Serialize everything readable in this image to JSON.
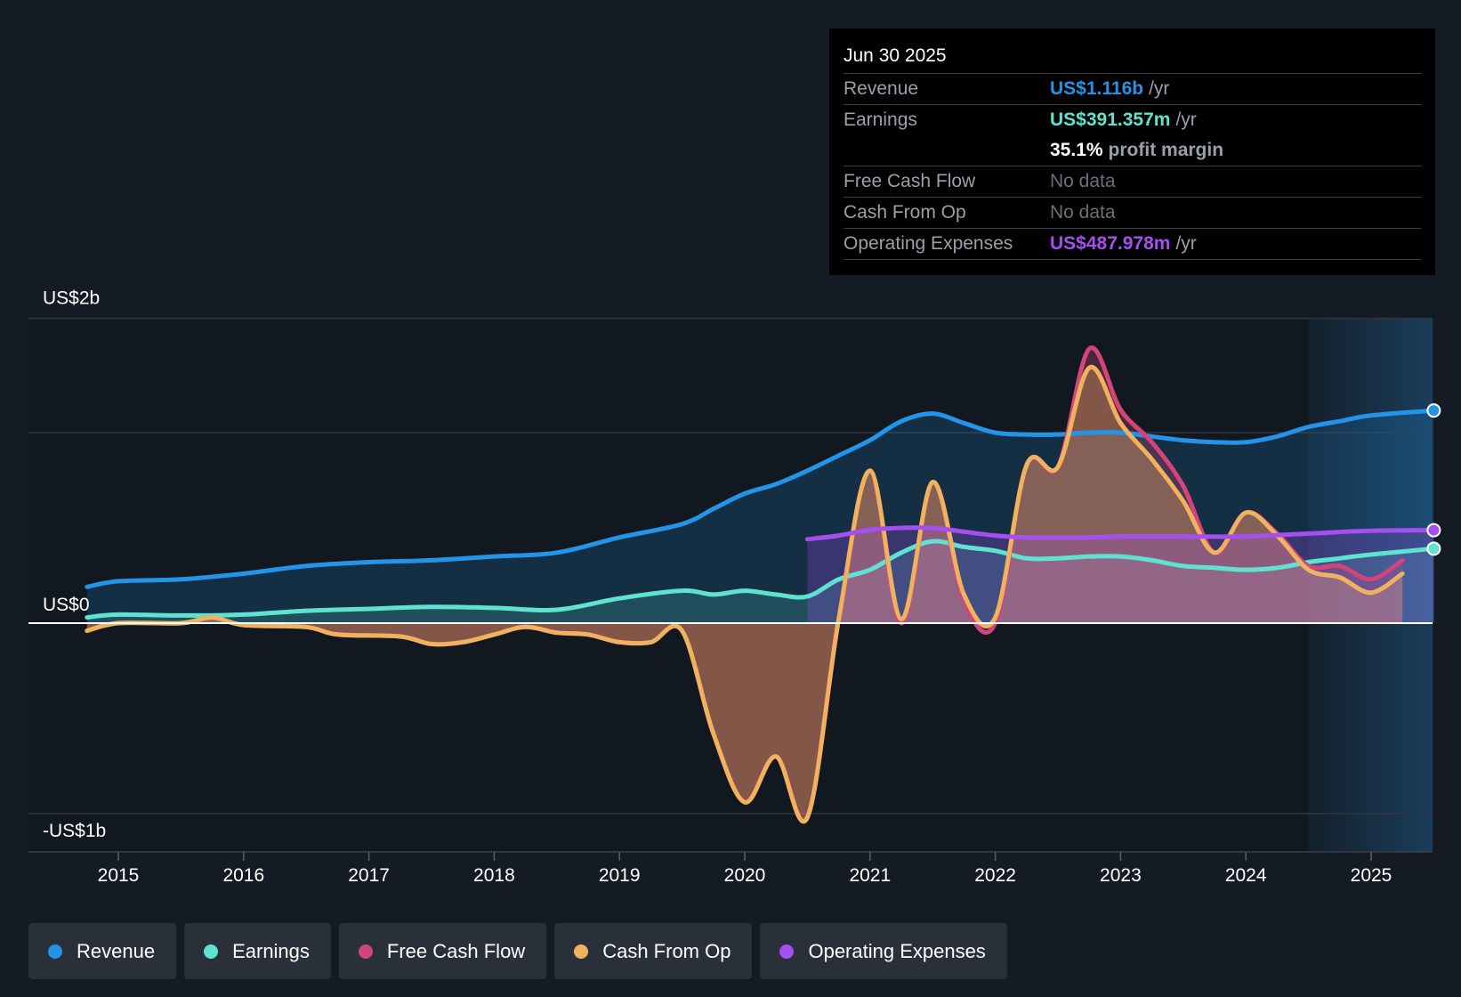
{
  "tooltip": {
    "date": "Jun 30 2025",
    "revenue_label": "Revenue",
    "revenue_value": "US$1.116b",
    "earnings_label": "Earnings",
    "earnings_value": "US$391.357m",
    "margin_value": "35.1%",
    "margin_label": "profit margin",
    "fcf_label": "Free Cash Flow",
    "fcf_value": "No data",
    "cfo_label": "Cash From Op",
    "cfo_value": "No data",
    "opex_label": "Operating Expenses",
    "opex_value": "US$487.978m",
    "unit": "/yr"
  },
  "legend": [
    {
      "label": "Revenue",
      "color": "#2394e8"
    },
    {
      "label": "Earnings",
      "color": "#5fe3d0"
    },
    {
      "label": "Free Cash Flow",
      "color": "#d1457a"
    },
    {
      "label": "Cash From Op",
      "color": "#f0b25e"
    },
    {
      "label": "Operating Expenses",
      "color": "#a64ff0"
    }
  ],
  "chart_data": {
    "type": "line",
    "title": "",
    "xlabel": "",
    "ylabel": "",
    "xlim": [
      2014.75,
      2025.5
    ],
    "ylim": [
      -1.2,
      1.6
    ],
    "y_tick_labels": [
      {
        "value": 1.6,
        "label": "US$2b"
      },
      {
        "value": 0,
        "label": "US$0"
      },
      {
        "value": -1.0,
        "label": "-US$1b"
      }
    ],
    "x_ticks": [
      2015,
      2016,
      2017,
      2018,
      2019,
      2020,
      2021,
      2022,
      2023,
      2024,
      2025
    ],
    "x_tick_labels": [
      "2015",
      "2016",
      "2017",
      "2018",
      "2019",
      "2020",
      "2021",
      "2022",
      "2023",
      "2024",
      "2025"
    ],
    "gridlines": [
      1.6,
      1.0,
      -1.0
    ],
    "forecast_start": 2024.5,
    "series": [
      {
        "name": "Revenue",
        "color": "#2394e8",
        "fill": true,
        "end_marker": true,
        "points": [
          [
            2014.5,
            0.19
          ],
          [
            2015,
            0.22
          ],
          [
            2015.5,
            0.23
          ],
          [
            2016,
            0.26
          ],
          [
            2016.5,
            0.3
          ],
          [
            2017,
            0.32
          ],
          [
            2017.5,
            0.33
          ],
          [
            2018,
            0.35
          ],
          [
            2018.5,
            0.37
          ],
          [
            2019,
            0.45
          ],
          [
            2019.5,
            0.52
          ],
          [
            2019.75,
            0.6
          ],
          [
            2020,
            0.68
          ],
          [
            2020.25,
            0.73
          ],
          [
            2020.5,
            0.8
          ],
          [
            2020.75,
            0.88
          ],
          [
            2021,
            0.96
          ],
          [
            2021.25,
            1.06
          ],
          [
            2021.5,
            1.1
          ],
          [
            2021.75,
            1.05
          ],
          [
            2022,
            1.0
          ],
          [
            2022.25,
            0.99
          ],
          [
            2022.5,
            0.99
          ],
          [
            2022.75,
            1.0
          ],
          [
            2023,
            1.0
          ],
          [
            2023.25,
            0.98
          ],
          [
            2023.5,
            0.96
          ],
          [
            2023.75,
            0.95
          ],
          [
            2024,
            0.95
          ],
          [
            2024.25,
            0.98
          ],
          [
            2024.5,
            1.03
          ],
          [
            2024.75,
            1.06
          ],
          [
            2025,
            1.09
          ],
          [
            2025.5,
            1.116
          ]
        ]
      },
      {
        "name": "Earnings",
        "color": "#5fe3d0",
        "fill": true,
        "end_marker": true,
        "points": [
          [
            2014.5,
            0.03
          ],
          [
            2015,
            0.045
          ],
          [
            2015.5,
            0.04
          ],
          [
            2016,
            0.045
          ],
          [
            2016.5,
            0.065
          ],
          [
            2017,
            0.075
          ],
          [
            2017.5,
            0.085
          ],
          [
            2018,
            0.08
          ],
          [
            2018.5,
            0.07
          ],
          [
            2019,
            0.13
          ],
          [
            2019.5,
            0.17
          ],
          [
            2019.75,
            0.15
          ],
          [
            2020,
            0.17
          ],
          [
            2020.25,
            0.15
          ],
          [
            2020.5,
            0.14
          ],
          [
            2020.75,
            0.23
          ],
          [
            2021,
            0.28
          ],
          [
            2021.25,
            0.37
          ],
          [
            2021.5,
            0.43
          ],
          [
            2021.75,
            0.4
          ],
          [
            2022,
            0.38
          ],
          [
            2022.25,
            0.34
          ],
          [
            2022.5,
            0.34
          ],
          [
            2022.75,
            0.35
          ],
          [
            2023,
            0.35
          ],
          [
            2023.25,
            0.33
          ],
          [
            2023.5,
            0.3
          ],
          [
            2023.75,
            0.29
          ],
          [
            2024,
            0.28
          ],
          [
            2024.25,
            0.29
          ],
          [
            2024.5,
            0.32
          ],
          [
            2024.75,
            0.34
          ],
          [
            2025,
            0.36
          ],
          [
            2025.5,
            0.391
          ]
        ]
      },
      {
        "name": "Free Cash Flow",
        "color": "#d1457a",
        "fill": true,
        "end_marker": false,
        "points": [
          [
            2014.75,
            -0.04
          ],
          [
            2015,
            0.0
          ],
          [
            2015.5,
            0.0
          ],
          [
            2015.75,
            0.03
          ],
          [
            2016,
            -0.01
          ],
          [
            2016.5,
            -0.02
          ],
          [
            2016.75,
            -0.06
          ],
          [
            2017.25,
            -0.07
          ],
          [
            2017.5,
            -0.11
          ],
          [
            2017.75,
            -0.1
          ],
          [
            2018,
            -0.06
          ],
          [
            2018.25,
            -0.02
          ],
          [
            2018.5,
            -0.05
          ],
          [
            2018.75,
            -0.06
          ],
          [
            2019,
            -0.1
          ],
          [
            2019.25,
            -0.1
          ],
          [
            2019.5,
            -0.04
          ],
          [
            2019.75,
            -0.58
          ],
          [
            2020,
            -0.94
          ],
          [
            2020.25,
            -0.7
          ],
          [
            2020.5,
            -1.02
          ],
          [
            2020.75,
            0.02
          ],
          [
            2021,
            0.8
          ],
          [
            2021.25,
            0.0
          ],
          [
            2021.5,
            0.74
          ],
          [
            2021.75,
            0.12
          ],
          [
            2022,
            0.0
          ],
          [
            2022.25,
            0.83
          ],
          [
            2022.5,
            0.82
          ],
          [
            2022.75,
            1.44
          ],
          [
            2023,
            1.12
          ],
          [
            2023.25,
            0.95
          ],
          [
            2023.5,
            0.72
          ],
          [
            2023.75,
            0.37
          ],
          [
            2024,
            0.58
          ],
          [
            2024.25,
            0.47
          ],
          [
            2024.5,
            0.3
          ],
          [
            2024.75,
            0.3
          ],
          [
            2025,
            0.23
          ],
          [
            2025.25,
            0.33
          ]
        ]
      },
      {
        "name": "Cash From Op",
        "color": "#f0b25e",
        "fill": true,
        "end_marker": false,
        "points": [
          [
            2014.75,
            -0.04
          ],
          [
            2015,
            0.0
          ],
          [
            2015.5,
            0.0
          ],
          [
            2015.75,
            0.03
          ],
          [
            2016,
            -0.01
          ],
          [
            2016.5,
            -0.02
          ],
          [
            2016.75,
            -0.06
          ],
          [
            2017.25,
            -0.07
          ],
          [
            2017.5,
            -0.11
          ],
          [
            2017.75,
            -0.1
          ],
          [
            2018,
            -0.06
          ],
          [
            2018.25,
            -0.02
          ],
          [
            2018.5,
            -0.05
          ],
          [
            2018.75,
            -0.06
          ],
          [
            2019,
            -0.1
          ],
          [
            2019.25,
            -0.1
          ],
          [
            2019.5,
            -0.04
          ],
          [
            2019.75,
            -0.58
          ],
          [
            2020,
            -0.94
          ],
          [
            2020.25,
            -0.7
          ],
          [
            2020.5,
            -1.02
          ],
          [
            2020.75,
            0.02
          ],
          [
            2021,
            0.8
          ],
          [
            2021.25,
            0.02
          ],
          [
            2021.5,
            0.74
          ],
          [
            2021.75,
            0.15
          ],
          [
            2022,
            0.03
          ],
          [
            2022.25,
            0.83
          ],
          [
            2022.5,
            0.82
          ],
          [
            2022.75,
            1.34
          ],
          [
            2023,
            1.05
          ],
          [
            2023.25,
            0.86
          ],
          [
            2023.5,
            0.64
          ],
          [
            2023.75,
            0.37
          ],
          [
            2024,
            0.58
          ],
          [
            2024.25,
            0.46
          ],
          [
            2024.5,
            0.28
          ],
          [
            2024.75,
            0.24
          ],
          [
            2025,
            0.16
          ],
          [
            2025.25,
            0.26
          ]
        ]
      },
      {
        "name": "Operating Expenses",
        "color": "#a64ff0",
        "fill": true,
        "end_marker": true,
        "points": [
          [
            2020.5,
            0.44
          ],
          [
            2020.75,
            0.46
          ],
          [
            2021,
            0.49
          ],
          [
            2021.25,
            0.5
          ],
          [
            2021.5,
            0.5
          ],
          [
            2021.75,
            0.48
          ],
          [
            2022,
            0.46
          ],
          [
            2022.25,
            0.45
          ],
          [
            2022.5,
            0.45
          ],
          [
            2022.75,
            0.45
          ],
          [
            2023,
            0.455
          ],
          [
            2023.5,
            0.455
          ],
          [
            2024,
            0.455
          ],
          [
            2024.5,
            0.47
          ],
          [
            2025,
            0.485
          ],
          [
            2025.5,
            0.488
          ]
        ]
      }
    ]
  }
}
